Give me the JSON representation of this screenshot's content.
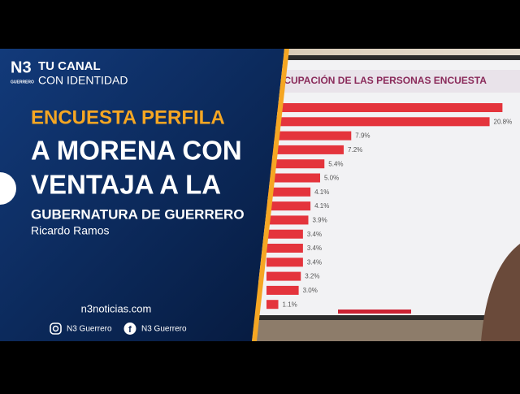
{
  "brand": {
    "logo": "N3",
    "logo_sub": "GUERRERO",
    "line1": "TU CANAL",
    "line2": "CON IDENTIDAD"
  },
  "headline": {
    "kicker": "ENCUESTA PERFILA",
    "line1": "A MORENA CON",
    "line2": "VENTAJA A LA",
    "line3": "GUBERNATURA DE GUERRERO"
  },
  "author": "Ricardo Ramos",
  "website": "n3noticias.com",
  "socials": [
    {
      "network": "instagram",
      "handle": "N3 Guerrero"
    },
    {
      "network": "facebook",
      "handle": "N3 Guerrero"
    }
  ],
  "screen": {
    "title": "OCUPACIÓN DE LAS PERSONAS ENCUESTA",
    "values": [
      22,
      20.8,
      7.9,
      7.2,
      5.4,
      5.0,
      4.1,
      4.1,
      3.9,
      3.4,
      3.4,
      3.4,
      3.2,
      3.0,
      1.1
    ],
    "value_labels": [
      null,
      "20.8%",
      "7.9%",
      "7.2%",
      "5.4%",
      "5.0%",
      "4.1%",
      "4.1%",
      "3.9%",
      "3.4%",
      "3.4%",
      "3.4%",
      "3.2%",
      "3.0%",
      "1.1%"
    ],
    "color": "#e4343c"
  }
}
